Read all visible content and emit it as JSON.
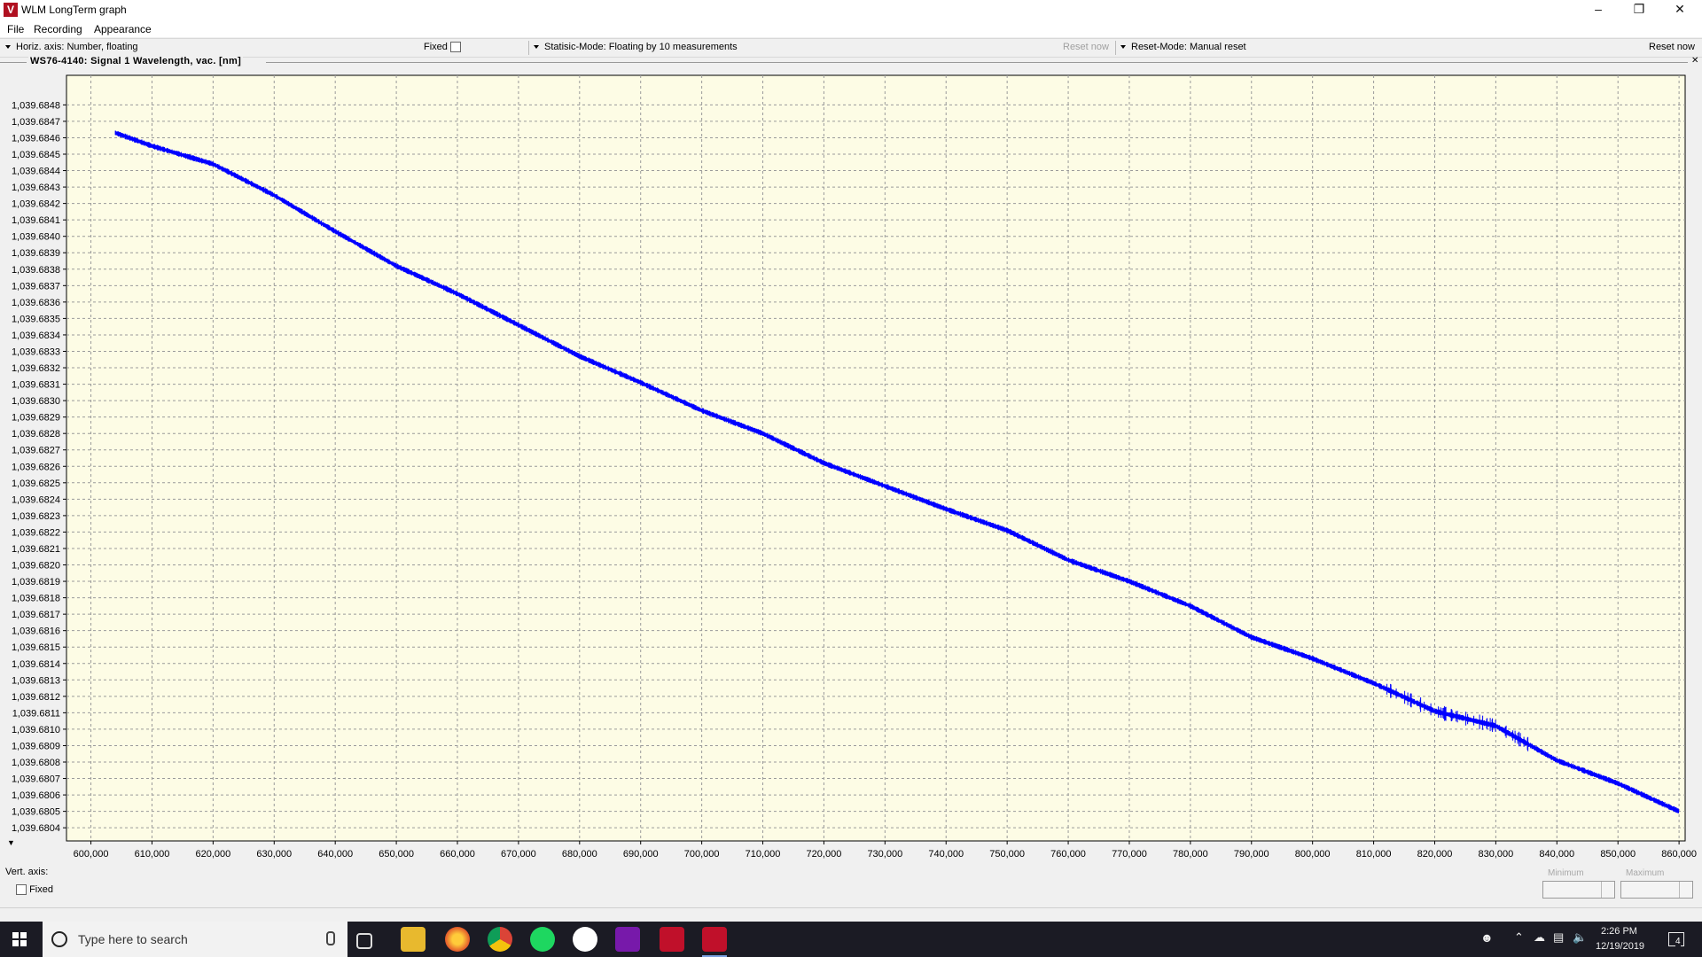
{
  "window": {
    "title": "WLM LongTerm graph",
    "icon": "wlm-app-icon",
    "controls": [
      "minimize",
      "restore",
      "close"
    ]
  },
  "menu": [
    "File",
    "Recording",
    "Appearance"
  ],
  "options": {
    "horiz_axis": "Horiz. axis: Number,  floating",
    "fixed_label": "Fixed",
    "statistic_mode": "Statisic-Mode: Floating by 10 measurements",
    "reset_now_disabled": "Reset now",
    "reset_mode": "Reset-Mode: Manual reset",
    "reset_now": "Reset now"
  },
  "signal_label": "WS76-4140:  Signal 1  Wavelength, vac.  [nm]",
  "chart_data": {
    "type": "line",
    "x_ticks": [
      "600,000",
      "610,000",
      "620,000",
      "630,000",
      "640,000",
      "650,000",
      "660,000",
      "670,000",
      "680,000",
      "690,000",
      "700,000",
      "710,000",
      "720,000",
      "730,000",
      "740,000",
      "750,000",
      "760,000",
      "770,000",
      "780,000",
      "790,000",
      "800,000",
      "810,000",
      "820,000",
      "830,000",
      "840,000",
      "850,000",
      "860,000"
    ],
    "y_ticks": [
      "1,039.6848",
      "1,039.6847",
      "1,039.6846",
      "1,039.6845",
      "1,039.6844",
      "1,039.6843",
      "1,039.6842",
      "1,039.6841",
      "1,039.6840",
      "1,039.6839",
      "1,039.6838",
      "1,039.6837",
      "1,039.6836",
      "1,039.6835",
      "1,039.6834",
      "1,039.6833",
      "1,039.6832",
      "1,039.6831",
      "1,039.6830",
      "1,039.6829",
      "1,039.6828",
      "1,039.6827",
      "1,039.6826",
      "1,039.6825",
      "1,039.6824",
      "1,039.6823",
      "1,039.6822",
      "1,039.6821",
      "1,039.6820",
      "1,039.6819",
      "1,039.6818",
      "1,039.6817",
      "1,039.6816",
      "1,039.6815",
      "1,039.6814",
      "1,039.6813",
      "1,039.6812",
      "1,039.6811",
      "1,039.6810",
      "1,039.6809",
      "1,039.6808",
      "1,039.6807",
      "1,039.6806",
      "1,039.6805",
      "1,039.6804"
    ],
    "xlim": [
      596000,
      861000
    ],
    "ylim": [
      1039.68032,
      1039.68498
    ],
    "grid": true,
    "series": [
      {
        "color": "#0000ff",
        "x": [
          604000,
          610000,
          620000,
          630000,
          640000,
          650000,
          660000,
          670000,
          680000,
          690000,
          700000,
          710000,
          720000,
          730000,
          740000,
          750000,
          760000,
          770000,
          780000,
          790000,
          800000,
          810000,
          820000,
          830000,
          840000,
          850000,
          860000
        ],
        "y": [
          1039.68463,
          1039.68455,
          1039.68444,
          1039.68425,
          1039.68403,
          1039.68382,
          1039.68365,
          1039.68346,
          1039.68327,
          1039.68311,
          1039.68294,
          1039.6828,
          1039.68262,
          1039.68248,
          1039.68234,
          1039.68221,
          1039.68203,
          1039.6819,
          1039.68175,
          1039.68156,
          1039.68143,
          1039.68128,
          1039.68111,
          1039.68102,
          1039.68081,
          1039.68067,
          1039.6805
        ],
        "noise_band": 3e-05
      }
    ]
  },
  "vertical_axis": {
    "label": "Vert. axis:",
    "fixed_label": "Fixed",
    "minimum_label": "Minimum",
    "maximum_label": "Maximum"
  },
  "taskbar": {
    "search_placeholder": "Type here to search",
    "time": "2:26 PM",
    "date": "12/19/2019",
    "notification_count": "4",
    "pinned_icons": [
      "task-view-icon",
      "file-explorer-icon",
      "firefox-icon",
      "chrome-icon",
      "spotify-icon",
      "slack-icon",
      "onenote-icon",
      "wlm-app-icon",
      "wlm-app-icon-active"
    ]
  }
}
